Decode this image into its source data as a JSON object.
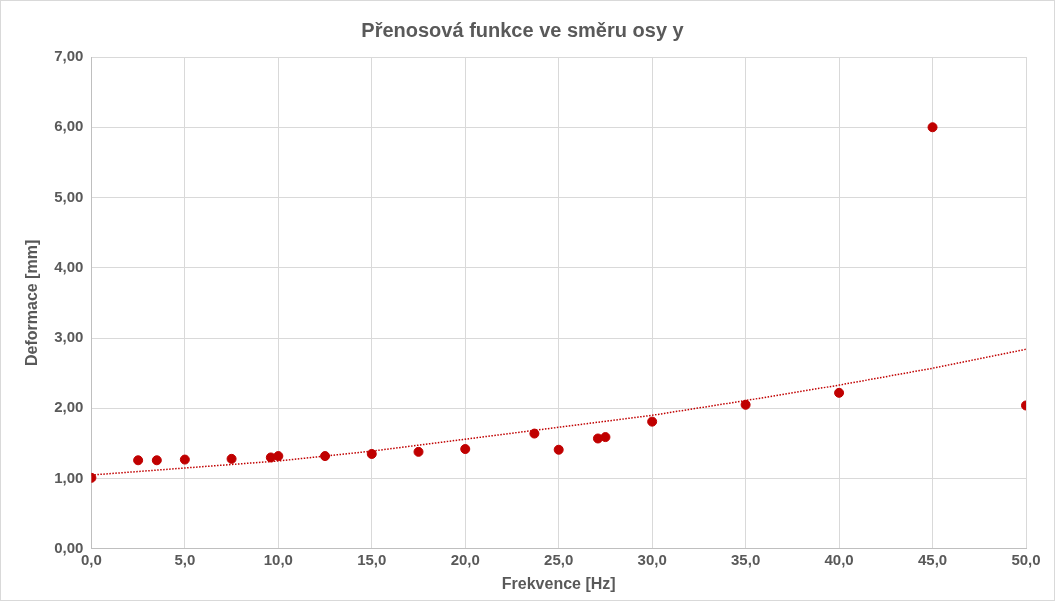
{
  "chart_data": {
    "type": "scatter",
    "title": "Přenosová funkce ve směru osy y",
    "xlabel": "Frekvence [Hz]",
    "ylabel": "Deformace [mm]",
    "series": [
      {
        "color": "#c00000",
        "x": [
          0,
          2.5,
          3.5,
          5,
          7.5,
          9.6,
          10,
          12.5,
          15,
          17.5,
          20,
          23.7,
          25,
          27.1,
          27.5,
          30,
          35,
          40,
          45,
          50
        ],
        "values": [
          1.01,
          1.26,
          1.26,
          1.27,
          1.28,
          1.3,
          1.32,
          1.32,
          1.35,
          1.38,
          1.42,
          1.64,
          1.41,
          1.57,
          1.59,
          1.81,
          2.05,
          2.22,
          6.0,
          2.04
        ]
      },
      {
        "type": "line",
        "color": "#c00000",
        "line_style": "dotted",
        "marker": "none",
        "x": [
          0,
          5,
          10,
          15,
          20,
          25,
          30,
          35,
          40,
          45,
          50
        ],
        "values": [
          1.05,
          1.15,
          1.25,
          1.39,
          1.56,
          1.73,
          1.9,
          2.11,
          2.33,
          2.57,
          2.84
        ]
      }
    ],
    "xlim": [
      0,
      50
    ],
    "xticks": [
      {
        "value": 0,
        "label": "0,0"
      },
      {
        "value": 5,
        "label": "5,0"
      },
      {
        "value": 10,
        "label": "10,0"
      },
      {
        "value": 15,
        "label": "15,0"
      },
      {
        "value": 20,
        "label": "20,0"
      },
      {
        "value": 25,
        "label": "25,0"
      },
      {
        "value": 30,
        "label": "30,0"
      },
      {
        "value": 35,
        "label": "35,0"
      },
      {
        "value": 40,
        "label": "40,0"
      },
      {
        "value": 45,
        "label": "45,0"
      },
      {
        "value": 50,
        "label": "50,0"
      }
    ],
    "ylim": [
      0,
      7
    ],
    "yticks": [
      {
        "value": 0,
        "label": "0,00"
      },
      {
        "value": 1,
        "label": "1,00"
      },
      {
        "value": 2,
        "label": "2,00"
      },
      {
        "value": 3,
        "label": "3,00"
      },
      {
        "value": 4,
        "label": "4,00"
      },
      {
        "value": 5,
        "label": "5,00"
      },
      {
        "value": 6,
        "label": "6,00"
      },
      {
        "value": 7,
        "label": "7,00"
      }
    ],
    "grid": true,
    "legend": false,
    "marker": "circle"
  }
}
